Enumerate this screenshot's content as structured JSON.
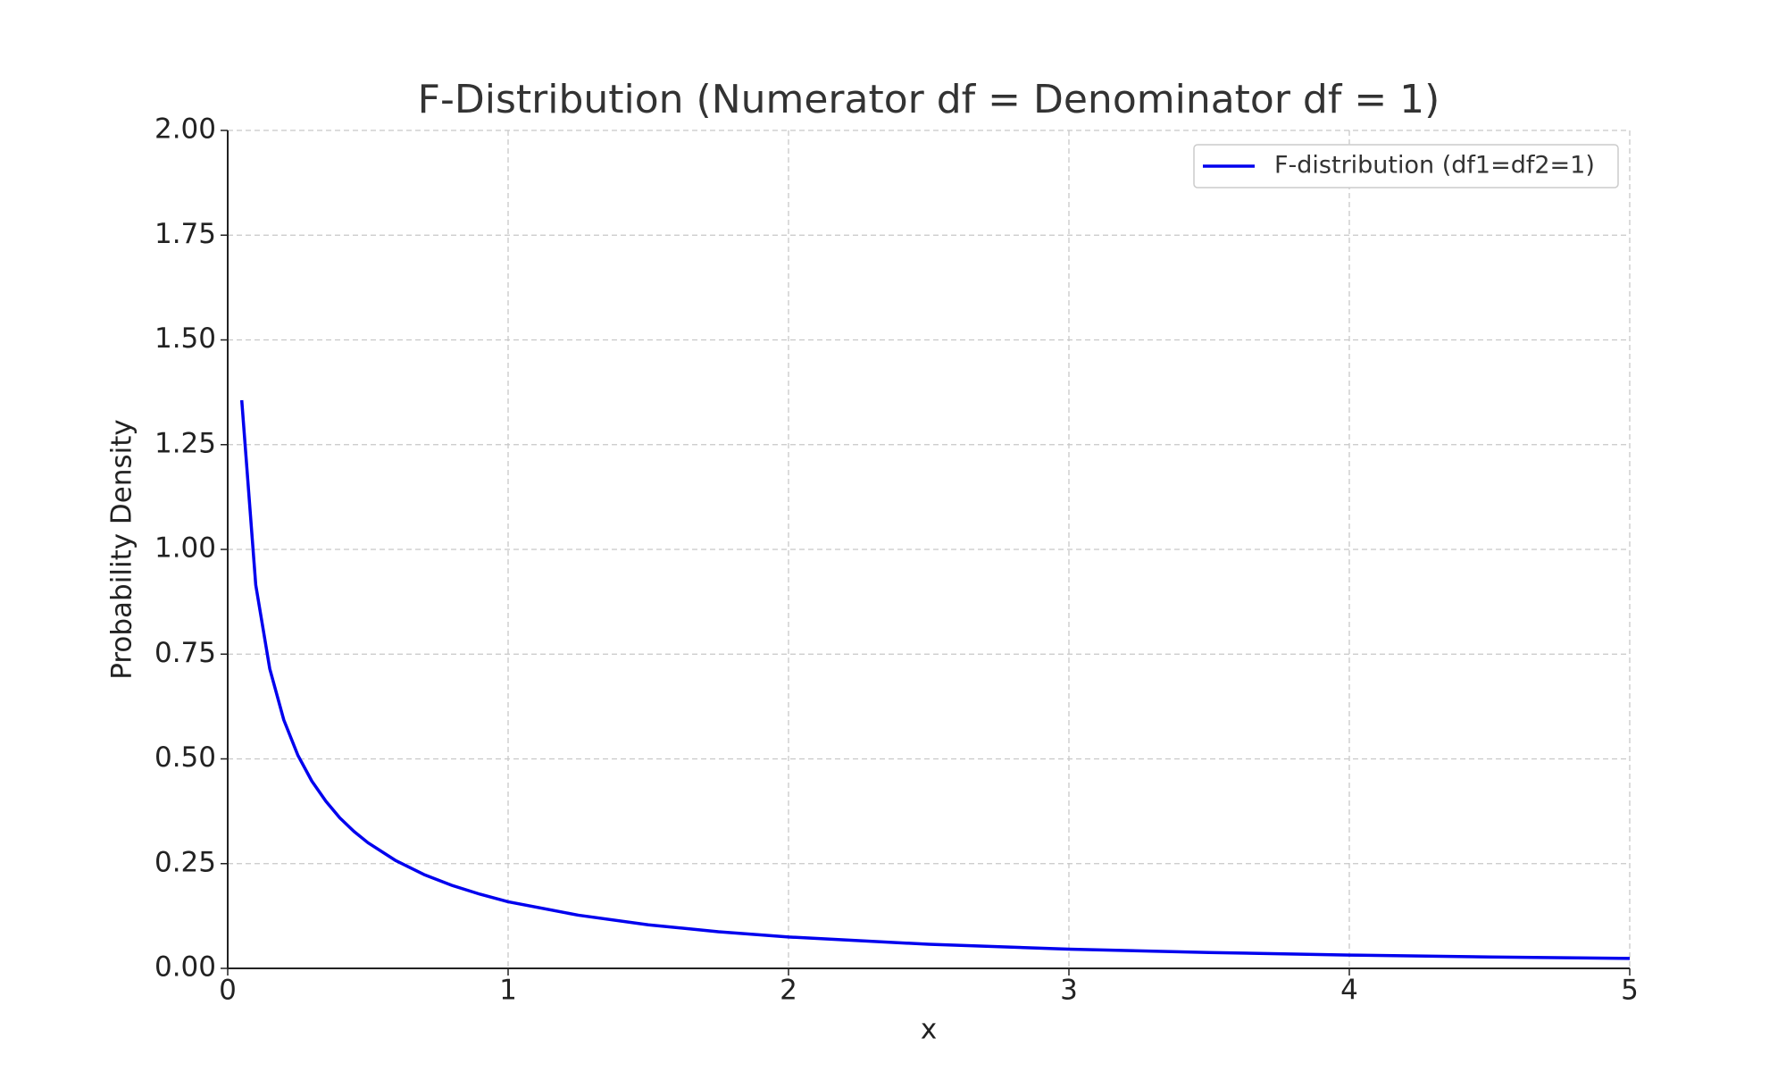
{
  "chart_data": {
    "type": "line",
    "title": "F-Distribution (Numerator df = Denominator df = 1)",
    "x_label": "x",
    "y_label": "Probability Density",
    "x": [
      0.05,
      0.1,
      0.15,
      0.2,
      0.25,
      0.3,
      0.35,
      0.4,
      0.45,
      0.5,
      0.6,
      0.7,
      0.8,
      0.9,
      1,
      1.25,
      1.5,
      1.75,
      2,
      2.5,
      3,
      3.5,
      4,
      4.5,
      5
    ],
    "series": [
      {
        "name": "F-distribution (df1=df2=1)",
        "color": "#0000ee",
        "values": [
          1.356,
          0.915,
          0.715,
          0.593,
          0.509,
          0.447,
          0.399,
          0.359,
          0.327,
          0.3,
          0.257,
          0.224,
          0.198,
          0.177,
          0.159,
          0.127,
          0.104,
          0.0875,
          0.075,
          0.0575,
          0.0459,
          0.0378,
          0.0318,
          0.0273,
          0.0237
        ]
      }
    ],
    "xlim": [
      0,
      5
    ],
    "xticks": [
      0,
      1,
      2,
      3,
      4,
      5
    ],
    "ylim": [
      0,
      2
    ],
    "yticks": [
      {
        "value": 0,
        "label": "0.00"
      },
      {
        "value": 0.25,
        "label": "0.25"
      },
      {
        "value": 0.5,
        "label": "0.50"
      },
      {
        "value": 0.75,
        "label": "0.75"
      },
      {
        "value": 1,
        "label": "1.00"
      },
      {
        "value": 1.25,
        "label": "1.25"
      },
      {
        "value": 1.5,
        "label": "1.50"
      },
      {
        "value": 1.75,
        "label": "1.75"
      },
      {
        "value": 2,
        "label": "2.00"
      }
    ],
    "grid": true,
    "legend": "upper right"
  }
}
